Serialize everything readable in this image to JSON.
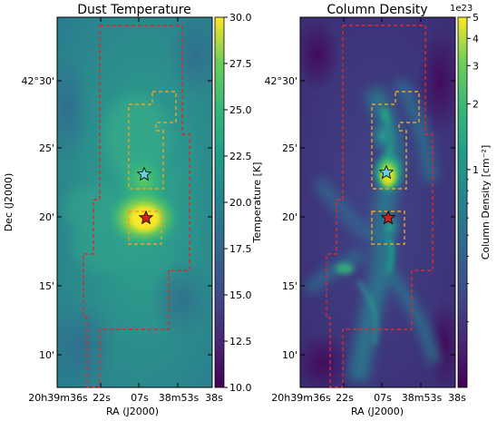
{
  "figure": {
    "panels": [
      {
        "id": "dust-temperature",
        "title": "Dust Temperature",
        "xlabel": "RA (J2000)",
        "ylabel": "Dec (J2000)",
        "x_ticks": [
          "20h39m36s",
          "22s",
          "07s",
          "38m53s",
          "38s"
        ],
        "y_ticks": [
          "42°30'",
          "25'",
          "20'",
          "15'",
          "10'"
        ],
        "colorbar": {
          "label": "Temperature [K]",
          "scale": "linear",
          "range": [
            10.0,
            30.0
          ],
          "ticks": [
            "10.0",
            "12.5",
            "15.0",
            "17.5",
            "20.0",
            "22.5",
            "25.0",
            "27.5",
            "30.0"
          ],
          "multiplier": "",
          "colormap": "viridis"
        }
      },
      {
        "id": "column-density",
        "title": "Column Density",
        "xlabel": "RA (J2000)",
        "ylabel": "",
        "x_ticks": [
          "20h39m36s",
          "22s",
          "07s",
          "38m53s",
          "38s"
        ],
        "y_ticks": [
          "42°30'",
          "25'",
          "20'",
          "15'",
          "10'"
        ],
        "colorbar": {
          "label": "Column Density [cm⁻²]",
          "scale": "log",
          "range": [
            0.1,
            5
          ],
          "ticks": [
            "1",
            "2",
            "3",
            "4",
            "5"
          ],
          "multiplier": "1e23",
          "colormap": "viridis"
        }
      }
    ],
    "markers": [
      {
        "name": "cyan-star",
        "color": "#6ad0e0"
      },
      {
        "name": "red-star",
        "color": "#d22020"
      }
    ],
    "region_colors": {
      "outer": "#e02828",
      "inner": "#f0a020"
    }
  },
  "chart_data": [
    {
      "type": "heatmap",
      "title": "Dust Temperature",
      "xlabel": "RA (J2000)",
      "ylabel": "Dec (J2000)",
      "x_ticks": [
        "20h39m36s",
        "22s",
        "07s",
        "38m53s",
        "38s"
      ],
      "y_ticks": [
        "42°30'",
        "25'",
        "20'",
        "15'",
        "10'"
      ],
      "colorbar": {
        "label": "Temperature [K]",
        "range": [
          10.0,
          30.0
        ]
      },
      "grid": false
    },
    {
      "type": "heatmap",
      "title": "Column Density",
      "xlabel": "RA (J2000)",
      "ylabel": "",
      "x_ticks": [
        "20h39m36s",
        "22s",
        "07s",
        "38m53s",
        "38s"
      ],
      "y_ticks": [
        "42°30'",
        "25'",
        "20'",
        "15'",
        "10'"
      ],
      "colorbar": {
        "label": "Column Density [cm⁻²]",
        "scale": "log",
        "multiplier": "1e23",
        "ticks": [
          1,
          2,
          3,
          4,
          5
        ]
      },
      "grid": false
    }
  ]
}
